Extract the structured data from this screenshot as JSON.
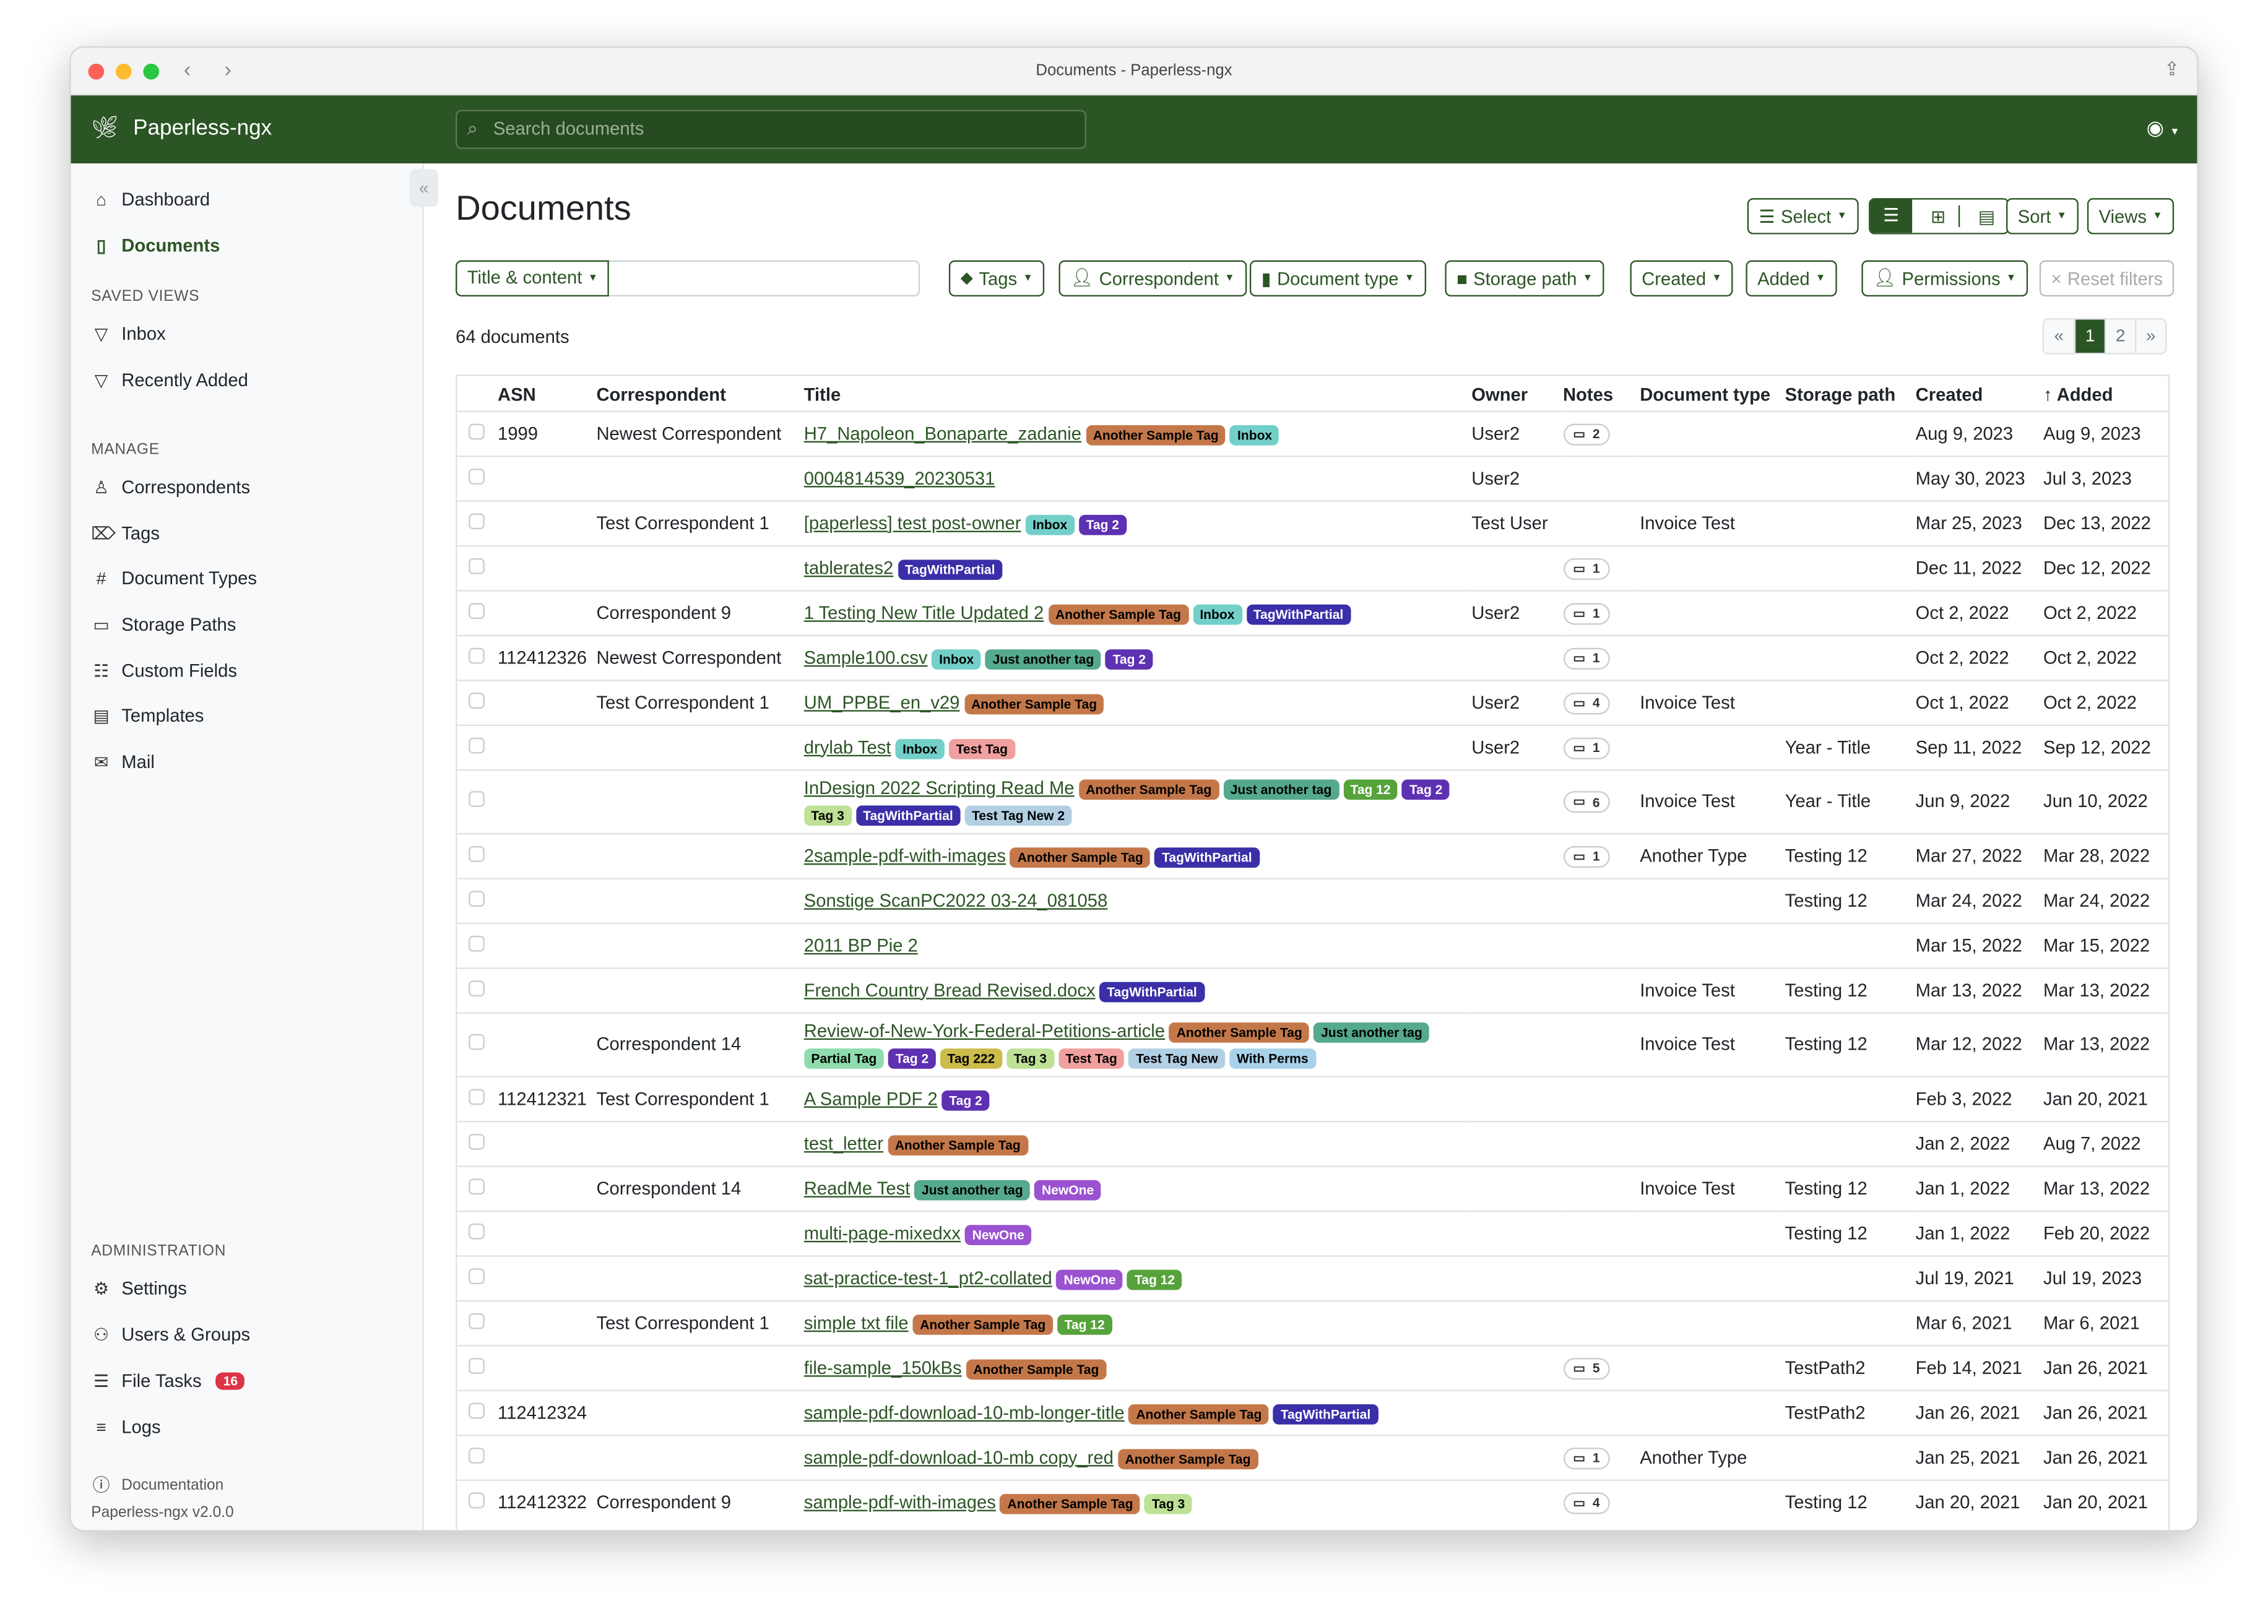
{
  "window": {
    "title": "Documents - Paperless-ngx"
  },
  "header": {
    "brand": "Paperless-ngx",
    "search_placeholder": "Search documents"
  },
  "sidebar": {
    "items": [
      {
        "label": "Dashboard",
        "icon": "house-icon"
      },
      {
        "label": "Documents",
        "icon": "files-icon",
        "active": true
      }
    ],
    "saved_views_heading": "SAVED VIEWS",
    "saved_views": [
      {
        "label": "Inbox"
      },
      {
        "label": "Recently Added"
      }
    ],
    "manage_heading": "MANAGE",
    "manage": [
      {
        "label": "Correspondents"
      },
      {
        "label": "Tags"
      },
      {
        "label": "Document Types"
      },
      {
        "label": "Storage Paths"
      },
      {
        "label": "Custom Fields"
      },
      {
        "label": "Templates"
      },
      {
        "label": "Mail"
      }
    ],
    "admin_heading": "ADMINISTRATION",
    "admin": [
      {
        "label": "Settings"
      },
      {
        "label": "Users & Groups"
      },
      {
        "label": "File Tasks",
        "badge": "16"
      },
      {
        "label": "Logs"
      }
    ],
    "documentation": "Documentation",
    "version": "Paperless-ngx v2.0.0"
  },
  "page": {
    "title": "Documents",
    "select": "Select",
    "sort": "Sort",
    "views": "Views",
    "filters": {
      "text_mode": "Title & content",
      "text_value": "",
      "tags": "Tags",
      "correspondent": "Correspondent",
      "document_type": "Document type",
      "storage_path": "Storage path",
      "created": "Created",
      "added": "Added",
      "permissions": "Permissions",
      "reset": "Reset filters"
    },
    "count": "64 documents",
    "pagination": {
      "prev": "«",
      "pages": [
        "1",
        "2"
      ],
      "current": "1",
      "next": "»"
    }
  },
  "table": {
    "columns": {
      "asn": "ASN",
      "correspondent": "Correspondent",
      "title": "Title",
      "owner": "Owner",
      "notes": "Notes",
      "doctype": "Document type",
      "storage": "Storage path",
      "created": "Created",
      "added": "Added",
      "sort_arrow": "↑"
    },
    "tag_colors": {
      "Another Sample Tag": [
        "#c4784a",
        "#000"
      ],
      "Inbox": [
        "#72d0c9",
        "#000"
      ],
      "Tag 2": [
        "#5e30b2",
        "#fff"
      ],
      "TagWithPartial": [
        "#3a2fa8",
        "#fff"
      ],
      "Just another tag": [
        "#55a98c",
        "#000"
      ],
      "Tag 12": [
        "#56a33c",
        "#fff"
      ],
      "Tag 3": [
        "#bee196",
        "#000"
      ],
      "Test Tag New 2": [
        "#b2d0e2",
        "#000"
      ],
      "Test Tag": [
        "#f0a09e",
        "#000"
      ],
      "Partial Tag": [
        "#8fdcae",
        "#000"
      ],
      "Tag 222": [
        "#ccbc4c",
        "#000"
      ],
      "Test Tag New": [
        "#b2d0e4",
        "#000"
      ],
      "With Perms": [
        "#a8d1ea",
        "#000"
      ],
      "NewOne": [
        "#9a52d0",
        "#fff"
      ]
    },
    "rows": [
      {
        "asn": "1999",
        "correspondent": "Newest Correspondent",
        "title": "H7_Napoleon_Bonaparte_zadanie",
        "tags": [
          "Another Sample Tag",
          "Inbox"
        ],
        "owner": "User2",
        "notes": "2",
        "doctype": "",
        "storage": "",
        "created": "Aug 9, 2023",
        "added": "Aug 9, 2023"
      },
      {
        "asn": "",
        "correspondent": "",
        "title": "0004814539_20230531",
        "tags": [],
        "owner": "User2",
        "notes": "",
        "doctype": "",
        "storage": "",
        "created": "May 30, 2023",
        "added": "Jul 3, 2023"
      },
      {
        "asn": "",
        "correspondent": "Test Correspondent 1",
        "title": "[paperless] test post-owner",
        "tags": [
          "Inbox",
          "Tag 2"
        ],
        "owner": "Test User",
        "notes": "",
        "doctype": "Invoice Test",
        "storage": "",
        "created": "Mar 25, 2023",
        "added": "Dec 13, 2022"
      },
      {
        "asn": "",
        "correspondent": "",
        "title": "tablerates2",
        "tags": [
          "TagWithPartial"
        ],
        "owner": "",
        "notes": "1",
        "doctype": "",
        "storage": "",
        "created": "Dec 11, 2022",
        "added": "Dec 12, 2022"
      },
      {
        "asn": "",
        "correspondent": "Correspondent 9",
        "title": "1 Testing New Title Updated 2",
        "tags": [
          "Another Sample Tag",
          "Inbox",
          "TagWithPartial"
        ],
        "owner": "User2",
        "notes": "1",
        "doctype": "",
        "storage": "",
        "created": "Oct 2, 2022",
        "added": "Oct 2, 2022"
      },
      {
        "asn": "112412326",
        "correspondent": "Newest Correspondent",
        "title": "Sample100.csv",
        "tags": [
          "Inbox",
          "Just another tag",
          "Tag 2"
        ],
        "owner": "",
        "notes": "1",
        "doctype": "",
        "storage": "",
        "created": "Oct 2, 2022",
        "added": "Oct 2, 2022"
      },
      {
        "asn": "",
        "correspondent": "Test Correspondent 1",
        "title": "UM_PPBE_en_v29",
        "tags": [
          "Another Sample Tag"
        ],
        "owner": "User2",
        "notes": "4",
        "doctype": "Invoice Test",
        "storage": "",
        "created": "Oct 1, 2022",
        "added": "Oct 2, 2022"
      },
      {
        "asn": "",
        "correspondent": "",
        "title": "drylab Test",
        "tags": [
          "Inbox",
          "Test Tag"
        ],
        "owner": "User2",
        "notes": "1",
        "doctype": "",
        "storage": "Year - Title",
        "created": "Sep 11, 2022",
        "added": "Sep 12, 2022"
      },
      {
        "asn": "",
        "correspondent": "",
        "title": "InDesign 2022 Scripting Read Me",
        "tags": [
          "Another Sample Tag",
          "Just another tag",
          "Tag 12",
          "Tag 2",
          "Tag 3",
          "TagWithPartial",
          "Test Tag New 2"
        ],
        "owner": "",
        "notes": "6",
        "doctype": "Invoice Test",
        "storage": "Year - Title",
        "created": "Jun 9, 2022",
        "added": "Jun 10, 2022"
      },
      {
        "asn": "",
        "correspondent": "",
        "title": "2sample-pdf-with-images",
        "tags": [
          "Another Sample Tag",
          "TagWithPartial"
        ],
        "owner": "",
        "notes": "1",
        "doctype": "Another Type",
        "storage": "Testing 12",
        "created": "Mar 27, 2022",
        "added": "Mar 28, 2022"
      },
      {
        "asn": "",
        "correspondent": "",
        "title": "Sonstige ScanPC2022 03-24_081058",
        "tags": [],
        "owner": "",
        "notes": "",
        "doctype": "",
        "storage": "Testing 12",
        "created": "Mar 24, 2022",
        "added": "Mar 24, 2022"
      },
      {
        "asn": "",
        "correspondent": "",
        "title": "2011 BP Pie 2",
        "tags": [],
        "owner": "",
        "notes": "",
        "doctype": "",
        "storage": "",
        "created": "Mar 15, 2022",
        "added": "Mar 15, 2022"
      },
      {
        "asn": "",
        "correspondent": "",
        "title": "French Country Bread Revised.docx",
        "tags": [
          "TagWithPartial"
        ],
        "owner": "",
        "notes": "",
        "doctype": "Invoice Test",
        "storage": "Testing 12",
        "created": "Mar 13, 2022",
        "added": "Mar 13, 2022"
      },
      {
        "asn": "",
        "correspondent": "Correspondent 14",
        "title": "Review-of-New-York-Federal-Petitions-article",
        "tags": [
          "Another Sample Tag",
          "Just another tag",
          "Partial Tag",
          "Tag 2",
          "Tag 222",
          "Tag 3",
          "Test Tag",
          "Test Tag New",
          "With Perms"
        ],
        "owner": "",
        "notes": "",
        "doctype": "Invoice Test",
        "storage": "Testing 12",
        "created": "Mar 12, 2022",
        "added": "Mar 13, 2022"
      },
      {
        "asn": "112412321",
        "correspondent": "Test Correspondent 1",
        "title": "A Sample PDF 2",
        "tags": [
          "Tag 2"
        ],
        "owner": "",
        "notes": "",
        "doctype": "",
        "storage": "",
        "created": "Feb 3, 2022",
        "added": "Jan 20, 2021"
      },
      {
        "asn": "",
        "correspondent": "",
        "title": "test_letter",
        "tags": [
          "Another Sample Tag"
        ],
        "owner": "",
        "notes": "",
        "doctype": "",
        "storage": "",
        "created": "Jan 2, 2022",
        "added": "Aug 7, 2022"
      },
      {
        "asn": "",
        "correspondent": "Correspondent 14",
        "title": "ReadMe Test",
        "tags": [
          "Just another tag",
          "NewOne"
        ],
        "owner": "",
        "notes": "",
        "doctype": "Invoice Test",
        "storage": "Testing 12",
        "created": "Jan 1, 2022",
        "added": "Mar 13, 2022"
      },
      {
        "asn": "",
        "correspondent": "",
        "title": "multi-page-mixedxx",
        "tags": [
          "NewOne"
        ],
        "owner": "",
        "notes": "",
        "doctype": "",
        "storage": "Testing 12",
        "created": "Jan 1, 2022",
        "added": "Feb 20, 2022"
      },
      {
        "asn": "",
        "correspondent": "",
        "title": "sat-practice-test-1_pt2-collated",
        "tags": [
          "NewOne",
          "Tag 12"
        ],
        "owner": "",
        "notes": "",
        "doctype": "",
        "storage": "",
        "created": "Jul 19, 2021",
        "added": "Jul 19, 2023"
      },
      {
        "asn": "",
        "correspondent": "Test Correspondent 1",
        "title": "simple txt file",
        "tags": [
          "Another Sample Tag",
          "Tag 12"
        ],
        "owner": "",
        "notes": "",
        "doctype": "",
        "storage": "",
        "created": "Mar 6, 2021",
        "added": "Mar 6, 2021"
      },
      {
        "asn": "",
        "correspondent": "",
        "title": "file-sample_150kBs",
        "tags": [
          "Another Sample Tag"
        ],
        "owner": "",
        "notes": "5",
        "doctype": "",
        "storage": "TestPath2",
        "created": "Feb 14, 2021",
        "added": "Jan 26, 2021"
      },
      {
        "asn": "112412324",
        "correspondent": "",
        "title": "sample-pdf-download-10-mb-longer-title",
        "tags": [
          "Another Sample Tag",
          "TagWithPartial"
        ],
        "owner": "",
        "notes": "",
        "doctype": "",
        "storage": "TestPath2",
        "created": "Jan 26, 2021",
        "added": "Jan 26, 2021"
      },
      {
        "asn": "",
        "correspondent": "",
        "title": "sample-pdf-download-10-mb copy_red",
        "tags": [
          "Another Sample Tag"
        ],
        "owner": "",
        "notes": "1",
        "doctype": "Another Type",
        "storage": "",
        "created": "Jan 25, 2021",
        "added": "Jan 26, 2021"
      },
      {
        "asn": "112412322",
        "correspondent": "Correspondent 9",
        "title": "sample-pdf-with-images",
        "tags": [
          "Another Sample Tag",
          "Tag 3"
        ],
        "owner": "",
        "notes": "4",
        "doctype": "",
        "storage": "Testing 12",
        "created": "Jan 20, 2021",
        "added": "Jan 20, 2021"
      }
    ]
  },
  "colors": {
    "brand": "#2c5525",
    "badge": "#dc3545"
  }
}
